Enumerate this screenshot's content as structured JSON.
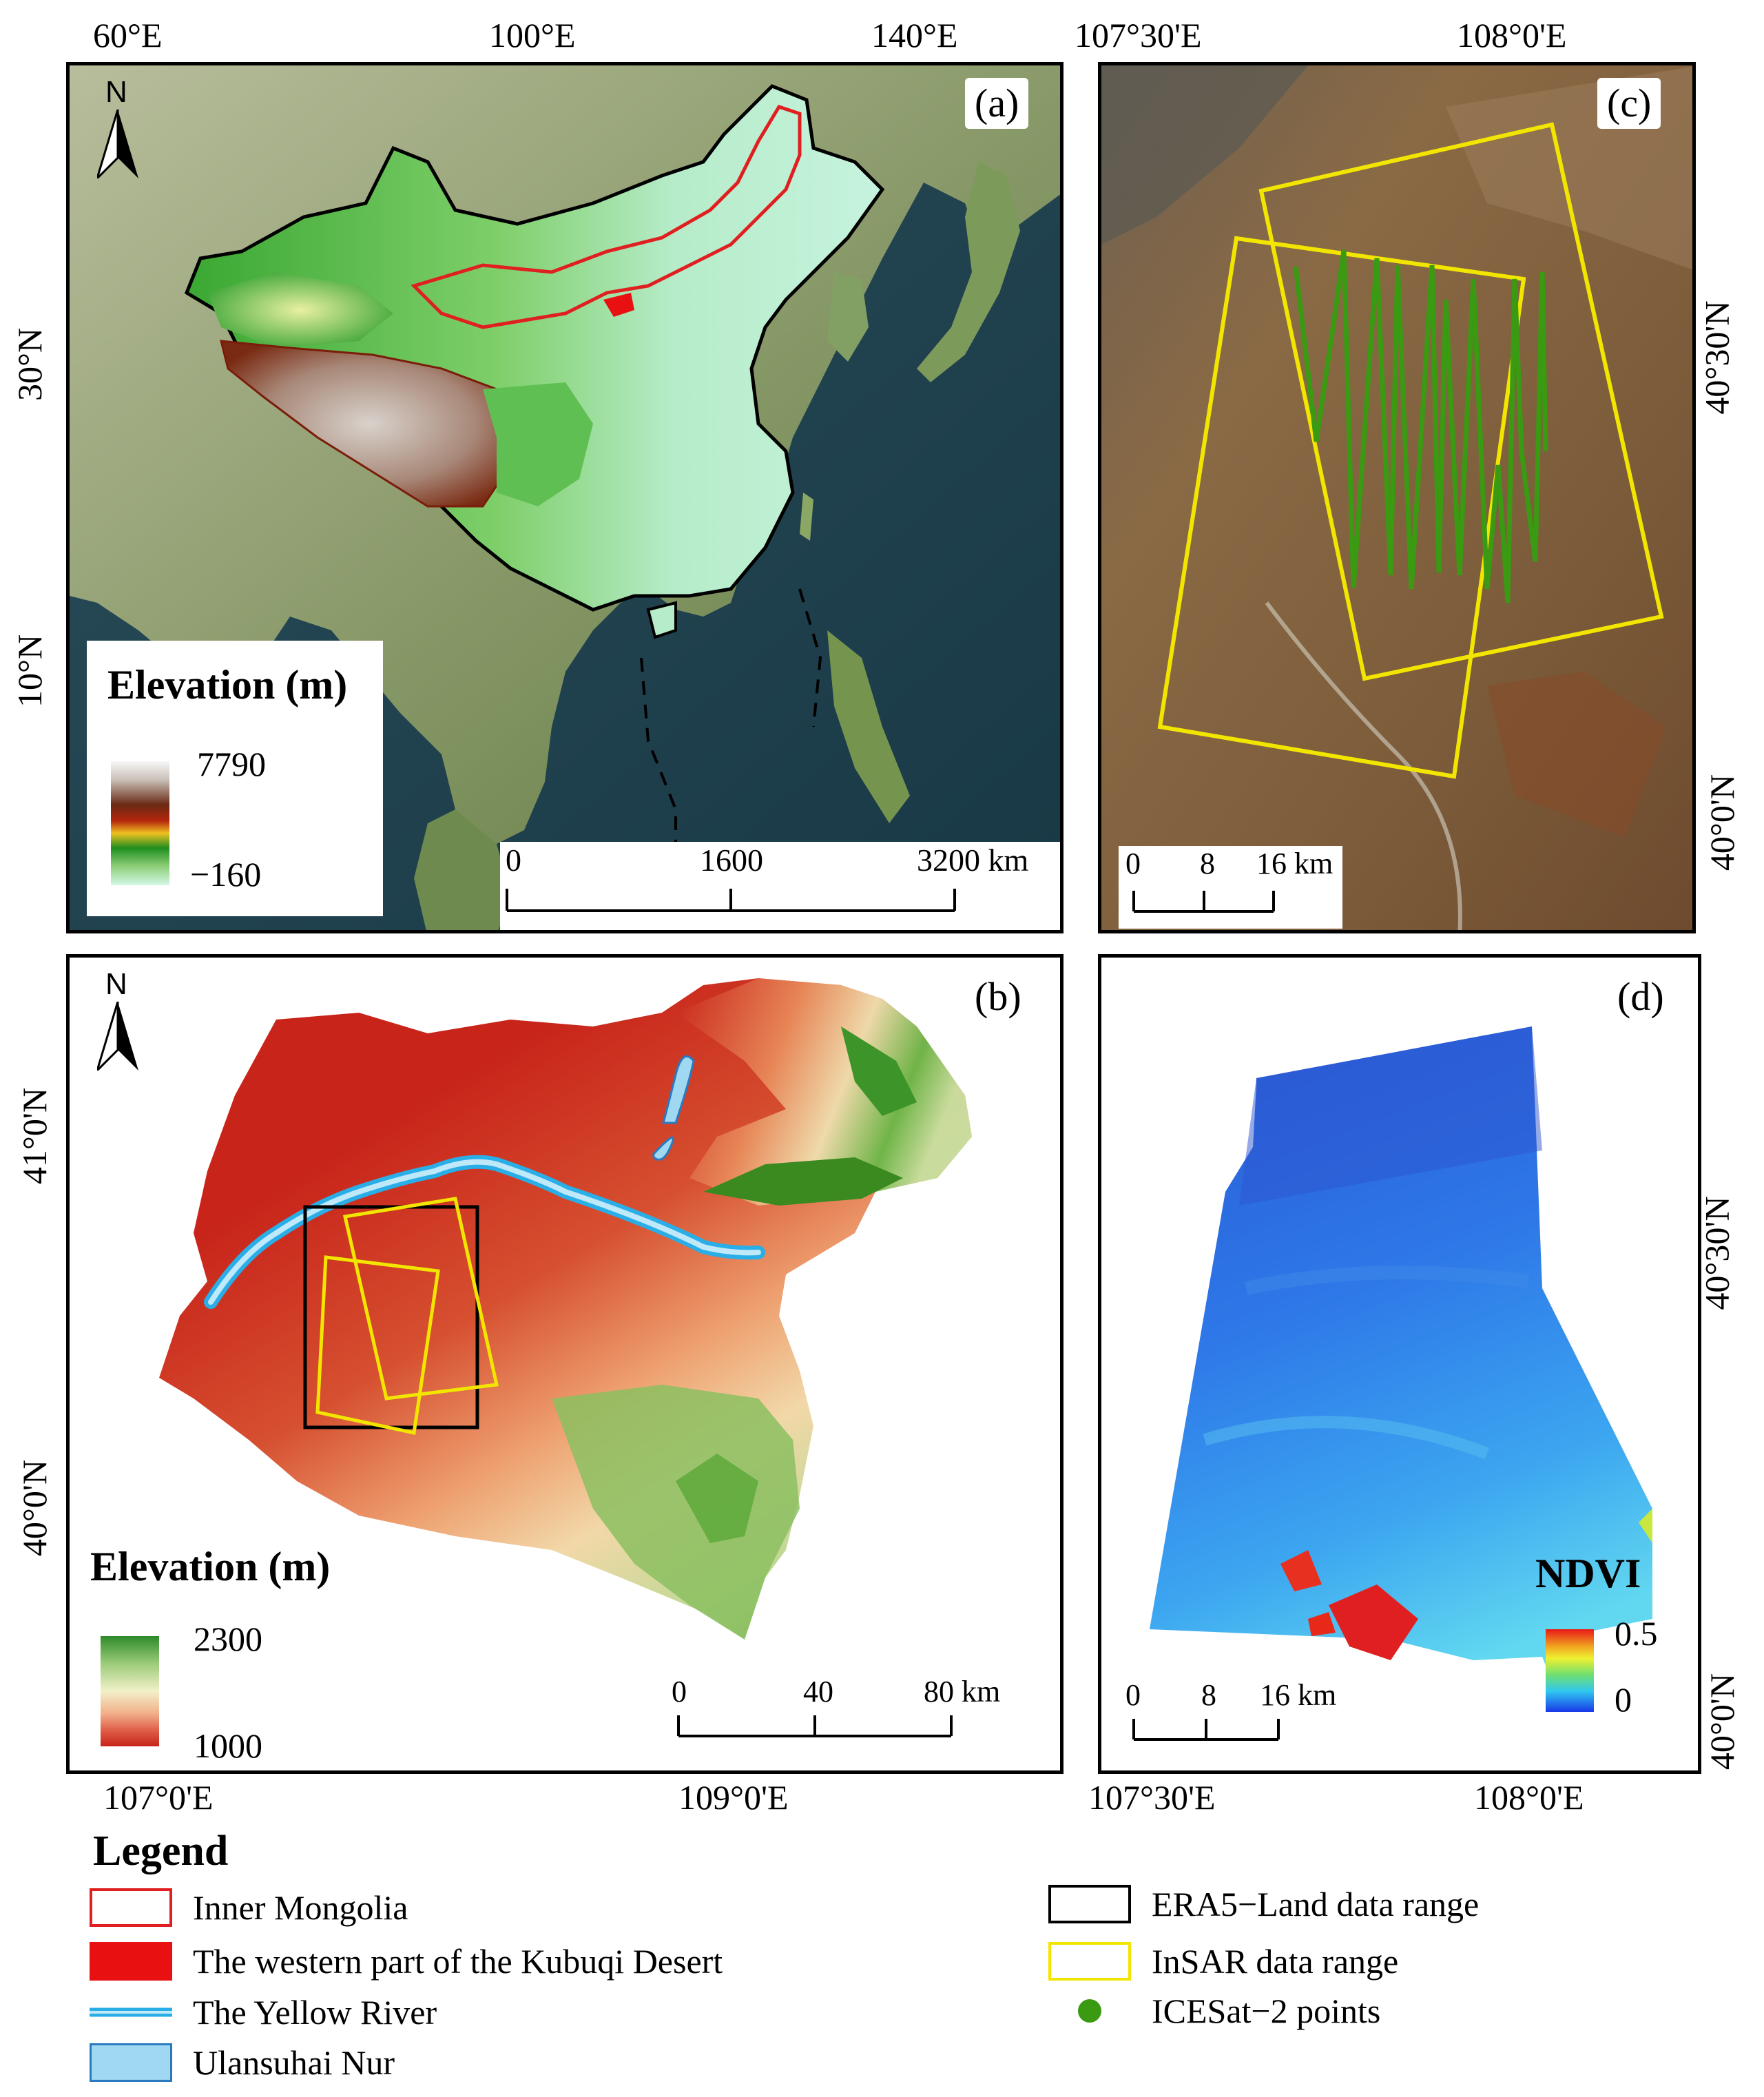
{
  "panels": {
    "a": {
      "label": "(a)",
      "top_ticks": [
        "60°E",
        "100°E",
        "140°E"
      ],
      "left_ticks": [
        "30°N",
        "10°N"
      ],
      "elevation_title": "Elevation (m)",
      "elevation_max": "7790",
      "elevation_min": "−160",
      "scale": [
        "0",
        "1600",
        "3200 km"
      ],
      "north": "N"
    },
    "b": {
      "label": "(b)",
      "bottom_ticks": [
        "107°0'E",
        "109°0'E"
      ],
      "left_ticks": [
        "41°0'N",
        "40°0'N"
      ],
      "elevation_title": "Elevation (m)",
      "elevation_max": "2300",
      "elevation_min": "1000",
      "scale": [
        "0",
        "40",
        "80 km"
      ],
      "north": "N"
    },
    "c": {
      "label": "(c)",
      "top_ticks": [
        "107°30'E",
        "108°0'E"
      ],
      "right_ticks": [
        "40°30'N",
        "40°0'N"
      ],
      "scale": [
        "0",
        "8",
        "16 km"
      ]
    },
    "d": {
      "label": "(d)",
      "bottom_ticks": [
        "107°30'E",
        "108°0'E"
      ],
      "right_ticks": [
        "40°30'N",
        "40°0'N"
      ],
      "ndvi_title": "NDVI",
      "ndvi_max": "0.5",
      "ndvi_min": "0",
      "scale": [
        "0",
        "8",
        "16 km"
      ]
    }
  },
  "legend": {
    "title": "Legend",
    "items": [
      {
        "label": "Inner Mongolia",
        "color": "#e02020"
      },
      {
        "label": "The western part of the Kubuqi Desert",
        "color": "#e81010"
      },
      {
        "label": "The Yellow River",
        "color": "#2aaee8"
      },
      {
        "label": "Ulansuhai Nur",
        "color": "#9fd8f0"
      },
      {
        "label": "ERA5−Land data range",
        "color": "#000000"
      },
      {
        "label": "InSAR data range",
        "color": "#f2e600"
      },
      {
        "label": "ICESat−2 points",
        "color": "#3a9a12"
      }
    ]
  }
}
